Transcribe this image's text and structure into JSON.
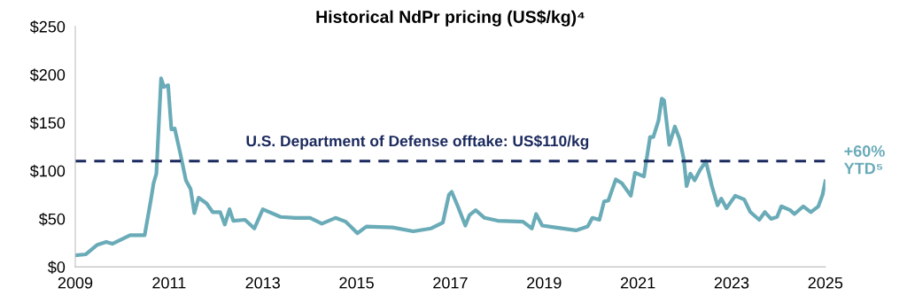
{
  "chart_data": {
    "type": "line",
    "title": "Historical NdPr pricing (US$/kg)⁴",
    "x": [
      2009.0,
      2009.22,
      2009.47,
      2009.66,
      2009.79,
      2010.17,
      2010.48,
      2010.61,
      2010.67,
      2010.73,
      2010.83,
      2010.89,
      2010.98,
      2011.05,
      2011.12,
      2011.24,
      2011.36,
      2011.46,
      2011.54,
      2011.63,
      2011.8,
      2011.93,
      2012.09,
      2012.19,
      2012.29,
      2012.37,
      2012.62,
      2012.82,
      2013.0,
      2013.38,
      2013.69,
      2014.01,
      2014.26,
      2014.55,
      2014.77,
      2015.02,
      2015.21,
      2015.77,
      2016.21,
      2016.59,
      2016.84,
      2016.97,
      2017.03,
      2017.16,
      2017.32,
      2017.41,
      2017.54,
      2017.73,
      2018.01,
      2018.55,
      2018.74,
      2018.83,
      2018.96,
      2019.24,
      2019.68,
      2019.93,
      2020.03,
      2020.18,
      2020.28,
      2020.37,
      2020.53,
      2020.66,
      2020.85,
      2020.94,
      2021.13,
      2021.26,
      2021.33,
      2021.44,
      2021.51,
      2021.56,
      2021.67,
      2021.79,
      2021.89,
      2021.98,
      2022.04,
      2022.12,
      2022.21,
      2022.33,
      2022.45,
      2022.58,
      2022.7,
      2022.78,
      2022.89,
      2022.99,
      2023.08,
      2023.27,
      2023.4,
      2023.59,
      2023.71,
      2023.84,
      2023.97,
      2024.06,
      2024.25,
      2024.34,
      2024.53,
      2024.69,
      2024.85,
      2024.94,
      2025.0
    ],
    "series": [
      {
        "color": "#6aabb8",
        "values": [
          12,
          13,
          23,
          26,
          24,
          33,
          33,
          69,
          87,
          97,
          196,
          187,
          189,
          143,
          144,
          118,
          90,
          81,
          56,
          72,
          66,
          57,
          57,
          44,
          60,
          48,
          49,
          40,
          60,
          52,
          51,
          51,
          45,
          51,
          47,
          35,
          42,
          41,
          37,
          40,
          46,
          75,
          78,
          63,
          43,
          54,
          59,
          51,
          48,
          47,
          40,
          55,
          43,
          41,
          38,
          42,
          51,
          49,
          68,
          69,
          91,
          87,
          74,
          98,
          94,
          135,
          135,
          152,
          175,
          173,
          127,
          146,
          133,
          112,
          84,
          97,
          90,
          101,
          110,
          84,
          64,
          71,
          61,
          68,
          74,
          70,
          57,
          49,
          57,
          50,
          52,
          63,
          59,
          55,
          63,
          57,
          63,
          75,
          89
        ]
      }
    ],
    "xlim": [
      2009,
      2025
    ],
    "xticks": [
      2009,
      2011,
      2013,
      2015,
      2017,
      2019,
      2021,
      2023,
      2025
    ],
    "ylim": [
      0,
      250
    ],
    "yticks": [
      {
        "value": 0,
        "label": "$0"
      },
      {
        "value": 50,
        "label": "$50"
      },
      {
        "value": 100,
        "label": "$100"
      },
      {
        "value": 150,
        "label": "$150"
      },
      {
        "value": 200,
        "label": "$200"
      },
      {
        "value": 250,
        "label": "$250"
      }
    ],
    "ref_lines": [
      {
        "axis": "y",
        "value": 110,
        "label": "U.S. Department of Defense offtake: US$110/kg",
        "color": "#1b2a5e",
        "line_style": "dashed"
      }
    ],
    "annotations": [
      {
        "text": "+60%\nYTD⁵",
        "x": 2025.0,
        "y": 110
      }
    ],
    "grid": false,
    "legend": false,
    "marker": "none",
    "line_style": "solid"
  }
}
